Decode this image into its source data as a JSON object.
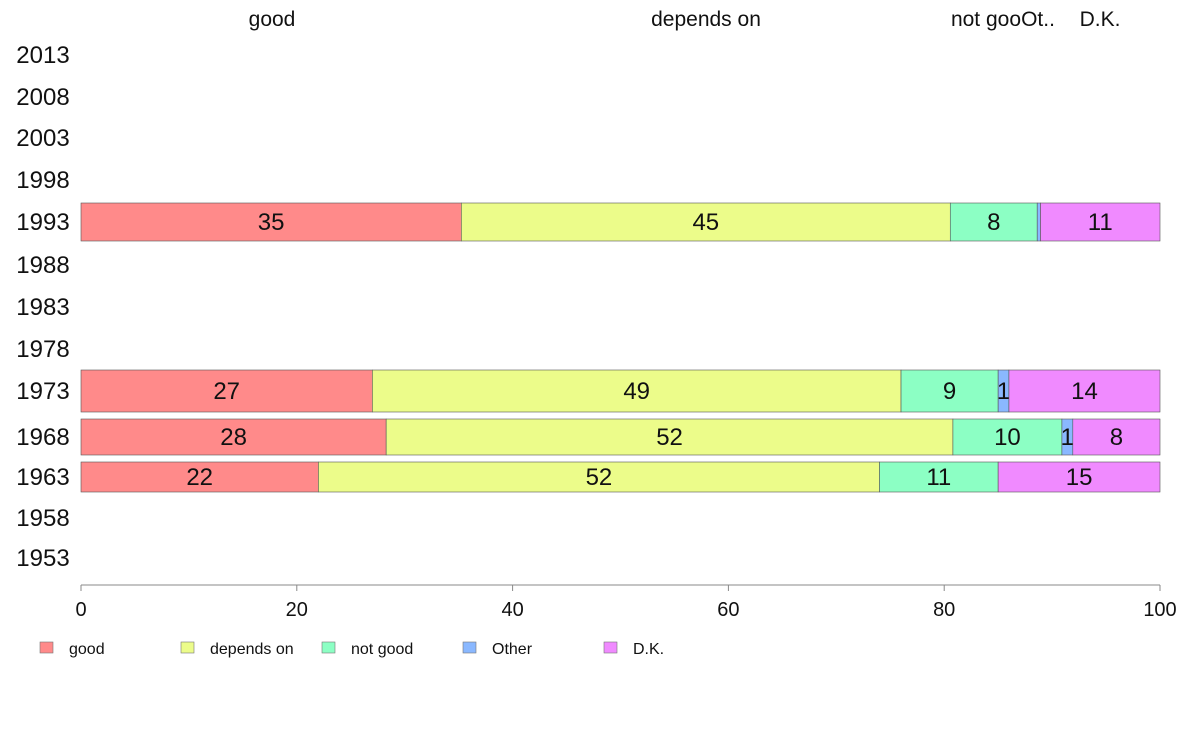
{
  "chart_data": {
    "type": "bar",
    "orientation": "horizontal",
    "stacked": true,
    "categories": [
      "2013",
      "2008",
      "2003",
      "1998",
      "1993",
      "1988",
      "1983",
      "1978",
      "1973",
      "1968",
      "1963",
      "1958",
      "1953"
    ],
    "column_headers": [
      "good",
      "depends on",
      "not goo",
      "Ot..",
      "D.K."
    ],
    "series": [
      {
        "name": "good",
        "color": "#ff8a8a",
        "values": [
          null,
          null,
          null,
          null,
          35,
          null,
          null,
          null,
          27,
          28,
          22,
          null,
          null
        ]
      },
      {
        "name": "depends on",
        "color": "#ecfc8a",
        "values": [
          null,
          null,
          null,
          null,
          45,
          null,
          null,
          null,
          49,
          52,
          52,
          null,
          null
        ]
      },
      {
        "name": "not good",
        "color": "#8cffc4",
        "values": [
          null,
          null,
          null,
          null,
          8,
          null,
          null,
          null,
          9,
          10,
          11,
          null,
          null
        ]
      },
      {
        "name": "Other",
        "color": "#8ab8ff",
        "values": [
          null,
          null,
          null,
          null,
          0.3,
          null,
          null,
          null,
          1,
          1,
          0,
          null,
          null
        ]
      },
      {
        "name": "D.K.",
        "color": "#f08aff",
        "values": [
          null,
          null,
          null,
          null,
          11,
          null,
          null,
          null,
          14,
          8,
          15,
          null,
          null
        ]
      }
    ],
    "data_labels": [
      {
        "category": "1993",
        "labels": [
          "35",
          "45",
          "8",
          "",
          "11"
        ]
      },
      {
        "category": "1973",
        "labels": [
          "27",
          "49",
          "9",
          "1",
          "14"
        ]
      },
      {
        "category": "1968",
        "labels": [
          "28",
          "52",
          "10",
          "1",
          "8"
        ]
      },
      {
        "category": "1963",
        "labels": [
          "22",
          "52",
          "11",
          "",
          "15"
        ]
      }
    ],
    "xlim": [
      0,
      100
    ],
    "xticks": [
      "0",
      "20",
      "40",
      "60",
      "80",
      "100"
    ],
    "grid": false,
    "legend_position": "bottom"
  }
}
